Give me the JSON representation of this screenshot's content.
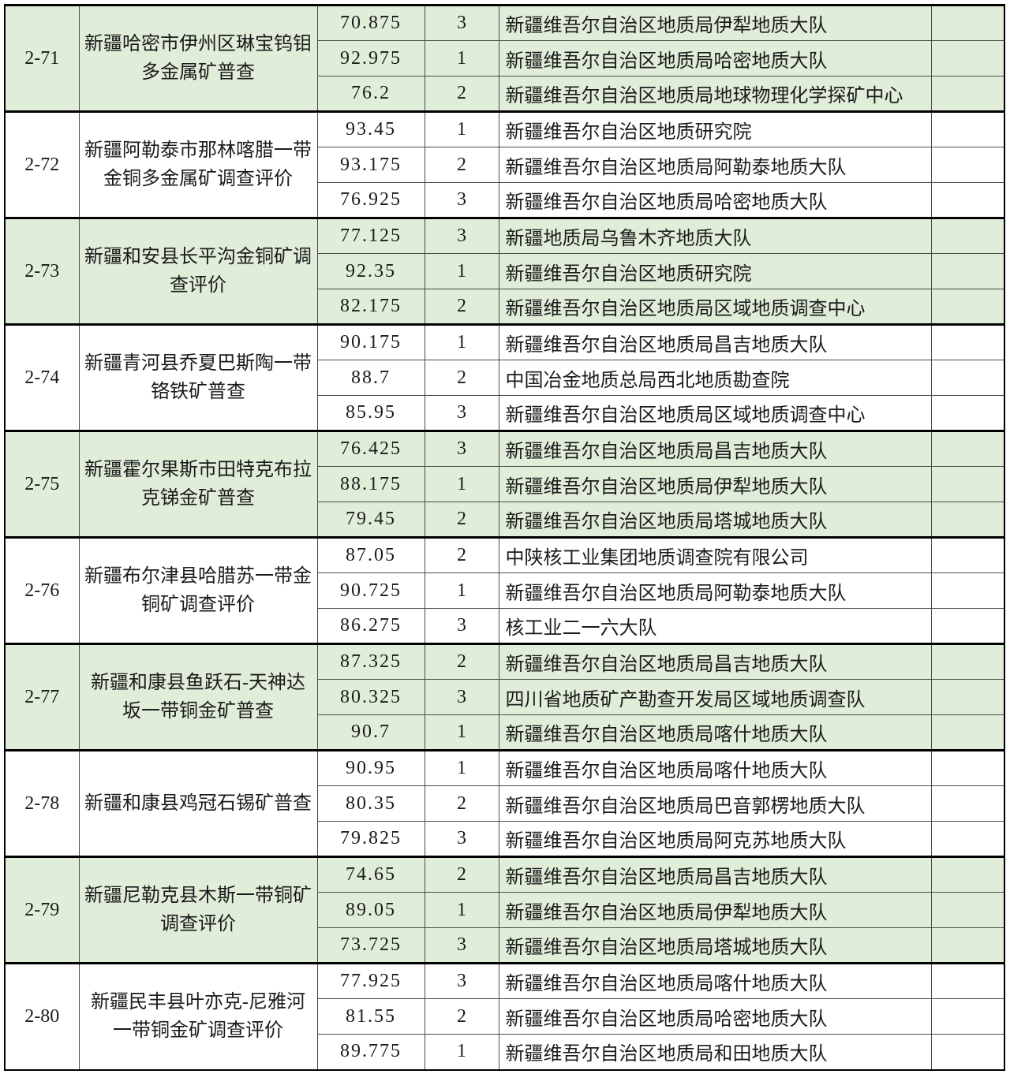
{
  "colors": {
    "row_shaded": "#e0edd8",
    "row_plain": "#ffffff",
    "border_heavy": "#000000",
    "border_light": "#4a4a4a",
    "border_gray": "#9a9a9a",
    "text": "#1b1b1b"
  },
  "table": {
    "groups": [
      {
        "id": "2-71",
        "project": "新疆哈密市伊州区琳宝钨钼多金属矿普查",
        "shaded": true,
        "rows": [
          {
            "score": "70.875",
            "rank": "3",
            "org": "新疆维吾尔自治区地质局伊犁地质大队"
          },
          {
            "score": "92.975",
            "rank": "1",
            "org": "新疆维吾尔自治区地质局哈密地质大队"
          },
          {
            "score": "76.2",
            "rank": "2",
            "org": "新疆维吾尔自治区地质局地球物理化学探矿中心"
          }
        ]
      },
      {
        "id": "2-72",
        "project": "新疆阿勒泰市那林喀腊一带金铜多金属矿调查评价",
        "shaded": false,
        "rows": [
          {
            "score": "93.45",
            "rank": "1",
            "org": "新疆维吾尔自治区地质研究院"
          },
          {
            "score": "93.175",
            "rank": "2",
            "org": "新疆维吾尔自治区地质局阿勒泰地质大队"
          },
          {
            "score": "76.925",
            "rank": "3",
            "org": "新疆维吾尔自治区地质局哈密地质大队"
          }
        ]
      },
      {
        "id": "2-73",
        "project": "新疆和安县长平沟金铜矿调查评价",
        "shaded": true,
        "rows": [
          {
            "score": "77.125",
            "rank": "3",
            "org": "新疆地质局乌鲁木齐地质大队"
          },
          {
            "score": "92.35",
            "rank": "1",
            "org": "新疆维吾尔自治区地质研究院"
          },
          {
            "score": "82.175",
            "rank": "2",
            "org": "新疆维吾尔自治区地质局区域地质调查中心"
          }
        ]
      },
      {
        "id": "2-74",
        "project": "新疆青河县乔夏巴斯陶一带铬铁矿普查",
        "shaded": false,
        "rows": [
          {
            "score": "90.175",
            "rank": "1",
            "org": "新疆维吾尔自治区地质局昌吉地质大队"
          },
          {
            "score": "88.7",
            "rank": "2",
            "org": "中国冶金地质总局西北地质勘查院"
          },
          {
            "score": "85.95",
            "rank": "3",
            "org": "新疆维吾尔自治区地质局区域地质调查中心"
          }
        ]
      },
      {
        "id": "2-75",
        "project": "新疆霍尔果斯市田特克布拉克锑金矿普查",
        "shaded": true,
        "rows": [
          {
            "score": "76.425",
            "rank": "3",
            "org": "新疆维吾尔自治区地质局昌吉地质大队"
          },
          {
            "score": "88.175",
            "rank": "1",
            "org": "新疆维吾尔自治区地质局伊犁地质大队"
          },
          {
            "score": "79.45",
            "rank": "2",
            "org": "新疆维吾尔自治区地质局塔城地质大队"
          }
        ]
      },
      {
        "id": "2-76",
        "project": "新疆布尔津县哈腊苏一带金铜矿调查评价",
        "shaded": false,
        "rows": [
          {
            "score": "87.05",
            "rank": "2",
            "org": "中陕核工业集团地质调查院有限公司"
          },
          {
            "score": "90.725",
            "rank": "1",
            "org": "新疆维吾尔自治区地质局阿勒泰地质大队"
          },
          {
            "score": "86.275",
            "rank": "3",
            "org": "核工业二一六大队"
          }
        ]
      },
      {
        "id": "2-77",
        "project": "新疆和康县鱼跃石-天神达坂一带铜金矿普查",
        "shaded": true,
        "rows": [
          {
            "score": "87.325",
            "rank": "2",
            "org": "新疆维吾尔自治区地质局昌吉地质大队"
          },
          {
            "score": "80.325",
            "rank": "3",
            "org": "四川省地质矿产勘查开发局区域地质调查队"
          },
          {
            "score": "90.7",
            "rank": "1",
            "org": "新疆维吾尔自治区地质局喀什地质大队"
          }
        ]
      },
      {
        "id": "2-78",
        "project": "新疆和康县鸡冠石锡矿普查",
        "shaded": false,
        "rows": [
          {
            "score": "90.95",
            "rank": "1",
            "org": "新疆维吾尔自治区地质局喀什地质大队"
          },
          {
            "score": "80.35",
            "rank": "2",
            "org": "新疆维吾尔自治区地质局巴音郭楞地质大队"
          },
          {
            "score": "79.825",
            "rank": "3",
            "org": "新疆维吾尔自治区地质局阿克苏地质大队"
          }
        ]
      },
      {
        "id": "2-79",
        "project": "新疆尼勒克县木斯一带铜矿调查评价",
        "shaded": true,
        "rows": [
          {
            "score": "74.65",
            "rank": "2",
            "org": "新疆维吾尔自治区地质局昌吉地质大队"
          },
          {
            "score": "89.05",
            "rank": "1",
            "org": "新疆维吾尔自治区地质局伊犁地质大队"
          },
          {
            "score": "73.725",
            "rank": "3",
            "org": "新疆维吾尔自治区地质局塔城地质大队"
          }
        ]
      },
      {
        "id": "2-80",
        "project": "新疆民丰县叶亦克-尼雅河一带铜金矿调查评价",
        "shaded": false,
        "rows": [
          {
            "score": "77.925",
            "rank": "3",
            "org": "新疆维吾尔自治区地质局喀什地质大队"
          },
          {
            "score": "81.55",
            "rank": "2",
            "org": "新疆维吾尔自治区地质局哈密地质大队"
          },
          {
            "score": "89.775",
            "rank": "1",
            "org": "新疆维吾尔自治区地质局和田地质大队"
          }
        ]
      }
    ]
  }
}
